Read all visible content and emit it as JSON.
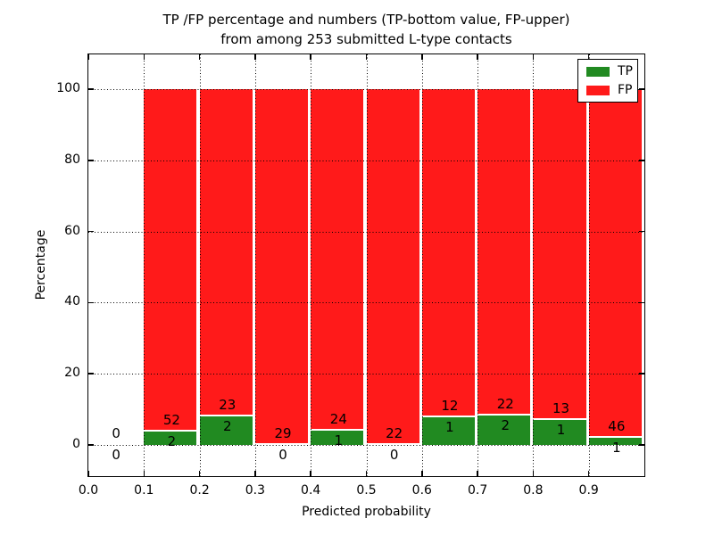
{
  "figure": {
    "title_line1": "TP /FP percentage and numbers (TP-bottom value, FP-upper)",
    "title_line2": "from among 253 submitted L-type contacts"
  },
  "chart_data": {
    "type": "bar",
    "stacked": true,
    "normalized_to": 100,
    "title": "TP /FP percentage and numbers (TP-bottom value, FP-upper) from among 253 submitted L-type contacts",
    "xlabel": "Predicted probability",
    "ylabel": "Percentage",
    "xlim": [
      0.0,
      1.0
    ],
    "ylim": [
      -9,
      110
    ],
    "xticks": [
      "0.0",
      "0.1",
      "0.2",
      "0.3",
      "0.4",
      "0.5",
      "0.6",
      "0.7",
      "0.8",
      "0.9"
    ],
    "yticks": [
      "0",
      "20",
      "40",
      "60",
      "80",
      "100"
    ],
    "grid": "dotted black, drawn over bars",
    "total_contacts": 253,
    "legend": {
      "position": "upper right",
      "items": [
        {
          "label": "TP",
          "color": "#218a21"
        },
        {
          "label": "FP",
          "color": "#ff1a1a"
        }
      ]
    },
    "colors": {
      "tp": "#218a21",
      "fp": "#ff1a1a",
      "bar_edge": "#ffffff"
    },
    "bins": [
      {
        "range": [
          0.0,
          0.1
        ],
        "tp": 0,
        "fp": 0,
        "tp_pct": 0,
        "fp_pct": 0,
        "has_bar": false
      },
      {
        "range": [
          0.1,
          0.2
        ],
        "tp": 2,
        "fp": 52,
        "tp_pct": 3.7,
        "fp_pct": 96.3,
        "has_bar": true
      },
      {
        "range": [
          0.2,
          0.3
        ],
        "tp": 2,
        "fp": 23,
        "tp_pct": 8.0,
        "fp_pct": 92.0,
        "has_bar": true
      },
      {
        "range": [
          0.3,
          0.4
        ],
        "tp": 0,
        "fp": 29,
        "tp_pct": 0,
        "fp_pct": 100,
        "has_bar": true
      },
      {
        "range": [
          0.4,
          0.5
        ],
        "tp": 1,
        "fp": 24,
        "tp_pct": 4.0,
        "fp_pct": 96.0,
        "has_bar": true
      },
      {
        "range": [
          0.5,
          0.6
        ],
        "tp": 0,
        "fp": 22,
        "tp_pct": 0,
        "fp_pct": 100,
        "has_bar": true
      },
      {
        "range": [
          0.6,
          0.7
        ],
        "tp": 1,
        "fp": 12,
        "tp_pct": 7.69,
        "fp_pct": 92.31,
        "has_bar": true
      },
      {
        "range": [
          0.7,
          0.8
        ],
        "tp": 2,
        "fp": 22,
        "tp_pct": 8.33,
        "fp_pct": 91.67,
        "has_bar": true
      },
      {
        "range": [
          0.8,
          0.9
        ],
        "tp": 1,
        "fp": 13,
        "tp_pct": 7.14,
        "fp_pct": 92.86,
        "has_bar": true
      },
      {
        "range": [
          0.9,
          1.0
        ],
        "tp": 1,
        "fp": 46,
        "tp_pct": 2.13,
        "fp_pct": 97.87,
        "has_bar": true
      }
    ]
  }
}
